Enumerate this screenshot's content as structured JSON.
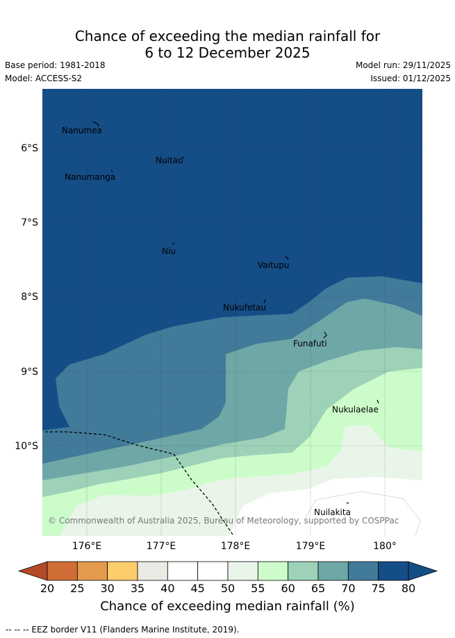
{
  "header": {
    "title_line1": "Chance of exceeding the median rainfall for",
    "title_line2": "6 to 12 December 2025",
    "base_period": "Base period: 1981-2018",
    "model": "Model: ACCESS-S2",
    "model_run": "Model run: 29/11/2025",
    "issued": "Issued: 01/12/2025"
  },
  "map": {
    "lat_labels": [
      "6°S",
      "7°S",
      "8°S",
      "9°S",
      "10°S"
    ],
    "lon_labels": [
      "176°E",
      "177°E",
      "178°E",
      "179°E",
      "180°"
    ],
    "places": [
      {
        "name": "Nanumea"
      },
      {
        "name": "Nuitao"
      },
      {
        "name": "Nanumanga"
      },
      {
        "name": "Niu"
      },
      {
        "name": "Vaitupu"
      },
      {
        "name": "Nukufetau"
      },
      {
        "name": "Funafuti"
      },
      {
        "name": "Nukulaelae"
      },
      {
        "name": "Nuilakita"
      }
    ],
    "copyright": "© Commonwealth of Australia 2025, Bureau of Meteorology, supported by COSPPac"
  },
  "colorbar": {
    "ticks": [
      "20",
      "25",
      "30",
      "35",
      "40",
      "45",
      "50",
      "55",
      "60",
      "65",
      "70",
      "75",
      "80"
    ],
    "colors": [
      "#b34a25",
      "#d06c35",
      "#e39a4d",
      "#fdcc6b",
      "#ebe9e4",
      "#ffffff",
      "#ffffff",
      "#e9f5e8",
      "#ccfcca",
      "#9dd2b9",
      "#6fa7a7",
      "#427a9a",
      "#154d86"
    ],
    "title": "Chance of exceeding median rainfall (%)"
  },
  "footnote": "-- -- -- EEZ border V11 (Flanders Marine Institute, 2019).",
  "colors": {
    "band_80": "#154d86",
    "band_75": "#427a9a",
    "band_70": "#6fa7a7",
    "band_65": "#9dd2b9",
    "band_60": "#ccfcca",
    "band_55": "#e9f5e8",
    "band_50": "#ffffff"
  }
}
